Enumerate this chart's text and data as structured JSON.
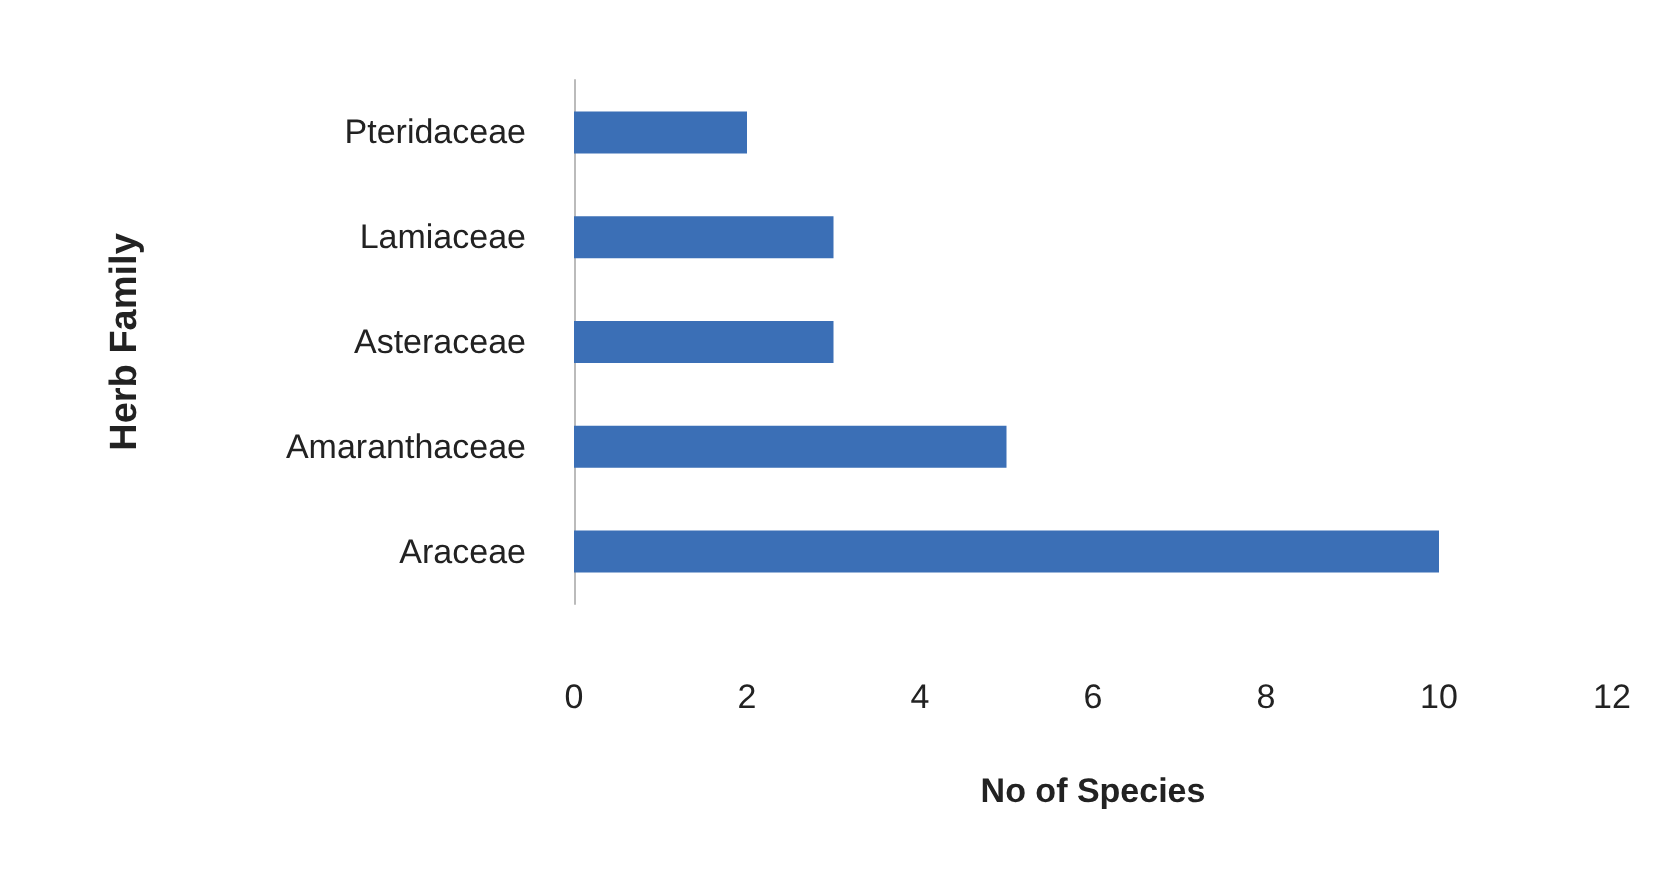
{
  "chart_data": {
    "type": "bar",
    "orientation": "horizontal",
    "xlabel": "No of Species",
    "ylabel": "Herb Family",
    "categories": [
      "Pteridaceae",
      "Lamiaceae",
      "Asteraceae",
      "Amaranthaceae",
      "Araceae"
    ],
    "values": [
      2,
      3,
      3,
      5,
      10
    ],
    "color": "#3b6fb6",
    "xlim": [
      0,
      12
    ],
    "xticks": [
      0,
      2,
      4,
      6,
      8,
      10,
      12
    ],
    "grid": false
  }
}
